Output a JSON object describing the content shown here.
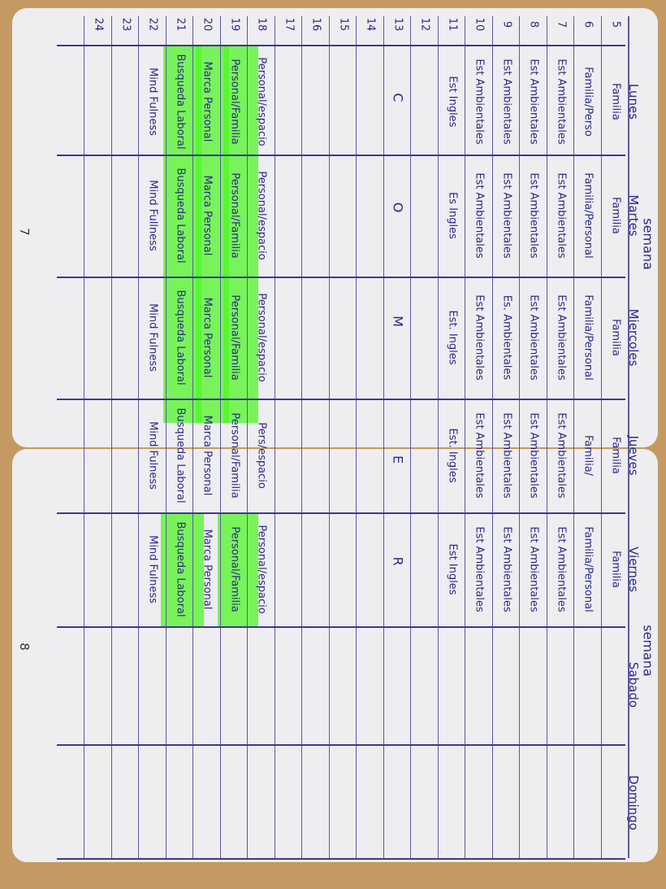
{
  "week_labels": [
    "semana",
    "semana"
  ],
  "days": [
    "Lunes",
    "Martes",
    "Miercoles",
    "Jueves",
    "Viernes",
    "Sabado",
    "Domingo"
  ],
  "rows": [
    {
      "hour": 5,
      "cells": [
        "Familia",
        "Familia",
        "Familia",
        "Familia",
        "Familia"
      ]
    },
    {
      "hour": 6,
      "cells": [
        "Familia/Perso",
        "Familia/Personal",
        "Familia/Personal",
        "Familia/",
        "Familia/Personal"
      ]
    },
    {
      "hour": 7,
      "cells": [
        "Est Ambientales",
        "Est Ambientales",
        "Est Ambientales",
        "Est Ambientales",
        "Est Ambientales"
      ]
    },
    {
      "hour": 8,
      "cells": [
        "Est Ambientales",
        "Est Ambientales",
        "Est Ambientales",
        "Est Ambientales",
        "Est Ambientales"
      ]
    },
    {
      "hour": 9,
      "cells": [
        "Est Ambientales",
        "Est Ambientales",
        "Es. Ambientales",
        "Est Ambientales",
        "Est Ambientales"
      ]
    },
    {
      "hour": 10,
      "cells": [
        "Est Ambientales",
        "Est Ambientales",
        "Est Ambientales",
        "Est Ambientales",
        "Est Ambientales"
      ]
    },
    {
      "hour": 11,
      "cells": [
        "Est Ingles",
        "Es Ingles",
        "Est. Ingles",
        "Est. Ingles",
        "Est Ingles"
      ]
    },
    {
      "hour": 12
    },
    {
      "hour": 13
    },
    {
      "hour": 14
    },
    {
      "hour": 15
    },
    {
      "hour": 16
    },
    {
      "hour": 17
    },
    {
      "hour": 18,
      "cells": [
        "Personal/espacio",
        "Personal/espacio",
        "Personal/espacio",
        "Pers/espacio",
        "Personal/espacio"
      ]
    },
    {
      "hour": 19,
      "cells": [
        "Personal/Familia",
        "Personal/Familia",
        "Personal/Familia",
        "Personal/Familia",
        "Personal/Familia"
      ]
    },
    {
      "hour": 20,
      "cells": [
        "Marca Personal",
        "Marca Personal",
        "Marca Personal",
        "Marca Personal",
        "Marca Personal"
      ]
    },
    {
      "hour": 21,
      "cells": [
        "Busqueda Laboral",
        "Busqueda Laboral",
        "Busqueda Laboral",
        "Busqueda Laboral",
        "Busqueda Laboral"
      ]
    },
    {
      "hour": 22,
      "cells": [
        "Mind Fulness",
        "Mind Fullness",
        "Mind Fulness",
        "Mind Fulness",
        "Mind Fulness"
      ]
    },
    {
      "hour": 23
    },
    {
      "hour": 24
    }
  ],
  "lunch_letters": [
    "C",
    "O",
    "M",
    "E",
    "R"
  ],
  "page_numbers": [
    7,
    8
  ]
}
